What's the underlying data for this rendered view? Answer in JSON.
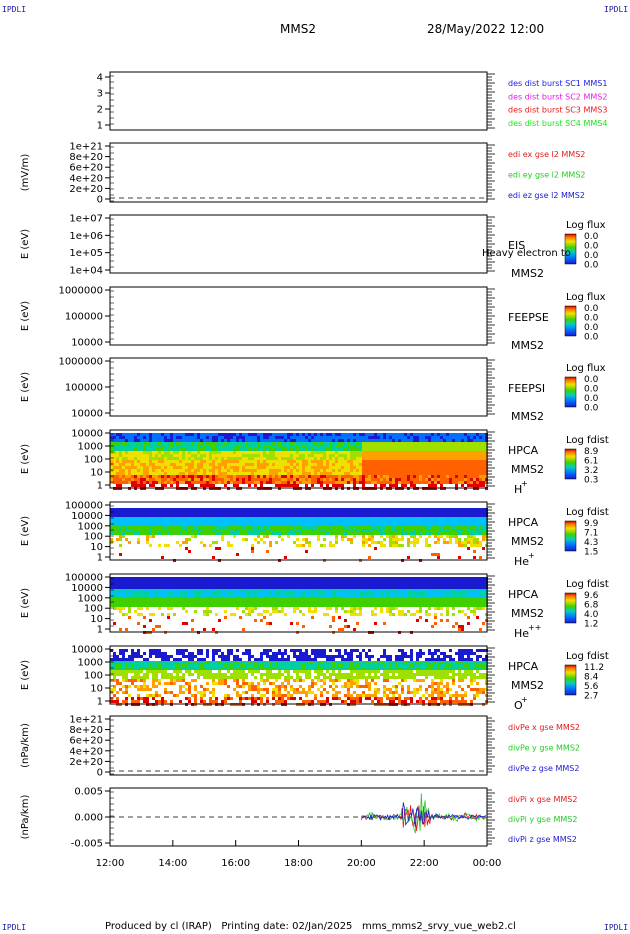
{
  "header": {
    "left_mark": "IPDLI",
    "right_mark": "IPDLI",
    "spacecraft": "MMS2",
    "datetime": "28/May/2022 12:00"
  },
  "footer": {
    "produced_by": "Produced by cl (IRAP)",
    "printing_date": "Printing date: 02/Jan/2025",
    "file": "mms_mms2_srvy_vue_web2.cl"
  },
  "time_axis": {
    "ticks": [
      "12:00",
      "14:00",
      "16:00",
      "18:00",
      "20:00",
      "22:00",
      "00:00"
    ]
  },
  "colors": {
    "mms1": "#1a1ae6",
    "mms2": "#e61ae6",
    "mms3": "#e61a1a",
    "mms4": "#1ae61a",
    "x": "#e61a1a",
    "y": "#22cc22",
    "z": "#1a1ad0"
  },
  "panels": {
    "p1": {
      "yticks": [
        "4",
        "3",
        "2",
        "1"
      ],
      "legend": [
        "des dist burst SC1 MMS1",
        "des dist burst SC2 MMS2",
        "des dist burst SC3 MMS3",
        "des dist burst SC4 MMS4"
      ]
    },
    "p2": {
      "ylabel": "(mV/m)",
      "yticks": [
        "1e+21",
        "8e+20",
        "6e+20",
        "4e+20",
        "2e+20",
        "0"
      ],
      "legend": [
        "edi ex gse l2 MMS2",
        "edi ey gse l2 MMS2",
        "edi ez gse l2 MMS2"
      ]
    },
    "p3": {
      "ylabel": "E (eV)",
      "yticks": [
        "1e+07",
        "1e+06",
        "1e+05",
        "1e+04"
      ],
      "label1": "EIS",
      "overlay": "Heavy electron to",
      "label2": "MMS2",
      "cbar_title": "Log flux",
      "cbar_ticks": [
        "0.0",
        "0.0",
        "0.0",
        "0.0"
      ]
    },
    "p4": {
      "ylabel": "E (eV)",
      "yticks": [
        "1000000",
        "100000",
        "10000"
      ],
      "label1": "FEEPSE",
      "label2": "MMS2",
      "cbar_title": "Log flux",
      "cbar_ticks": [
        "0.0",
        "0.0",
        "0.0",
        "0.0"
      ]
    },
    "p5": {
      "ylabel": "E (eV)",
      "yticks": [
        "1000000",
        "100000",
        "10000"
      ],
      "label1": "FEEPSI",
      "label2": "MMS2",
      "cbar_title": "Log flux",
      "cbar_ticks": [
        "0.0",
        "0.0",
        "0.0",
        "0.0"
      ]
    },
    "p6": {
      "ylabel": "E (eV)",
      "yticks": [
        "10000",
        "1000",
        "100",
        "10",
        "1"
      ],
      "label1": "HPCA",
      "label2": "MMS2",
      "species": "H",
      "species_sup": "+",
      "cbar_title": "Log fdist",
      "cbar_ticks": [
        "8.9",
        "6.1",
        "3.2",
        "0.3"
      ]
    },
    "p7": {
      "ylabel": "E (eV)",
      "yticks": [
        "100000",
        "10000",
        "1000",
        "100",
        "10",
        "1"
      ],
      "label1": "HPCA",
      "label2": "MMS2",
      "species": "He",
      "species_sup": "+",
      "cbar_title": "Log fdist",
      "cbar_ticks": [
        "9.9",
        "7.1",
        "4.3",
        "1.5"
      ]
    },
    "p8": {
      "ylabel": "E (eV)",
      "yticks": [
        "100000",
        "10000",
        "1000",
        "100",
        "10",
        "1"
      ],
      "label1": "HPCA",
      "label2": "MMS2",
      "species": "He",
      "species_sup": "++",
      "cbar_title": "Log fdist",
      "cbar_ticks": [
        "9.6",
        "6.8",
        "4.0",
        "1.2"
      ]
    },
    "p9": {
      "ylabel": "E (eV)",
      "yticks": [
        "10000",
        "1000",
        "100",
        "10",
        "1"
      ],
      "label1": "HPCA",
      "label2": "MMS2",
      "species": "O",
      "species_sup": "+",
      "cbar_title": "Log fdist",
      "cbar_ticks": [
        "11.2",
        "8.4",
        "5.6",
        "2.7"
      ]
    },
    "p10": {
      "ylabel": "(nPa/km)",
      "yticks": [
        "1e+21",
        "8e+20",
        "6e+20",
        "4e+20",
        "2e+20",
        "0"
      ],
      "legend": [
        "divPe x gse MMS2",
        "divPe y gse MMS2",
        "divPe z gse MMS2"
      ]
    },
    "p11": {
      "ylabel": "(nPa/km)",
      "yticks": [
        "0.005",
        "0.000",
        "-0.005"
      ],
      "legend": [
        "divPi x gse MMS2",
        "divPi y gse MMS2",
        "divPi z gse MMS2"
      ]
    }
  },
  "chart_data": {
    "type": "heatmap",
    "x_range": [
      "12:00",
      "00:00"
    ],
    "line_panel_ranges": {
      "divPi": [
        -0.009,
        0.009
      ],
      "divPi_data_start": "20:00"
    },
    "spectrogram_regions": [
      {
        "panel": "H+",
        "regime_change": "20:00"
      },
      {
        "panel": "He+",
        "regime_change": "20:00"
      },
      {
        "panel": "He++",
        "regime_change": "20:00"
      },
      {
        "panel": "O+",
        "regime_change": "20:00"
      }
    ]
  }
}
